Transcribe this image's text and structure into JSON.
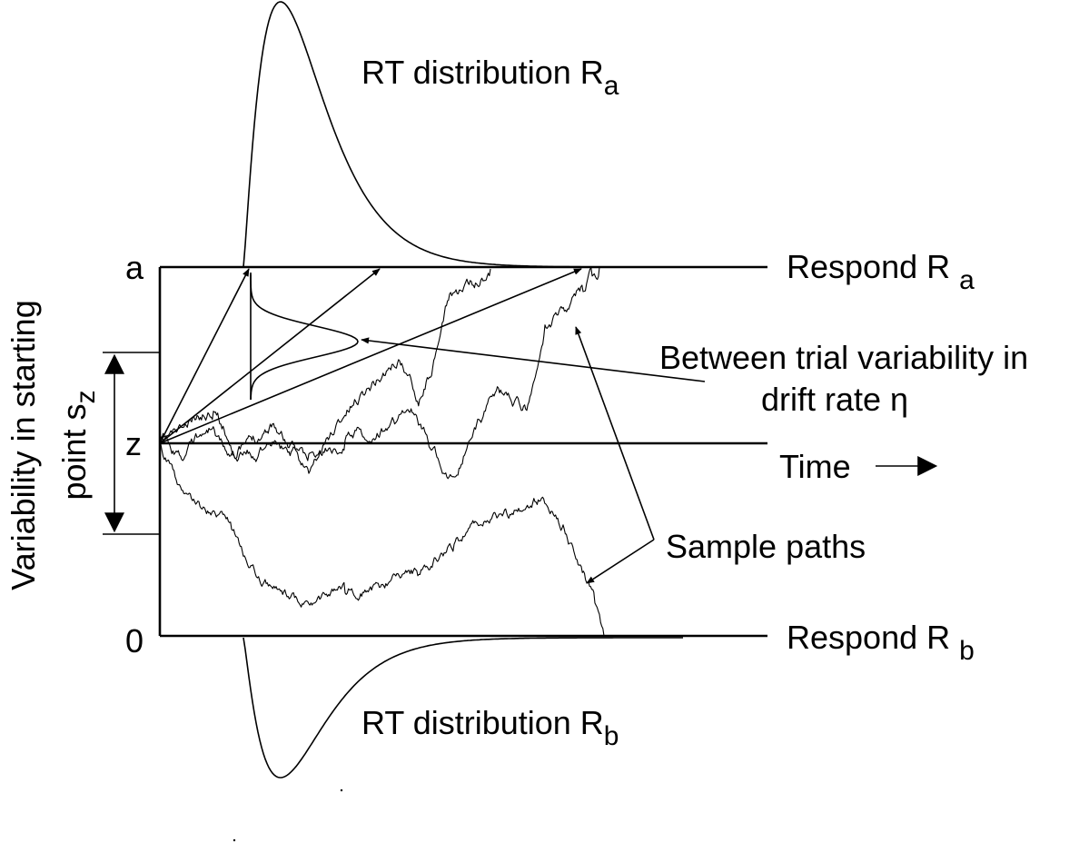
{
  "labels": {
    "rt_dist_a": "RT distribution R",
    "rt_dist_a_sub": "a",
    "rt_dist_b": "RT distribution R",
    "rt_dist_b_sub": "b",
    "respond_a": "Respond R",
    "respond_a_sub": "a",
    "respond_b": "Respond R",
    "respond_b_sub": "b",
    "boundary_a": "a",
    "start_z": "z",
    "boundary_0": "0",
    "time": "Time",
    "between_trial_line1": "Between trial variability in",
    "between_trial_line2": "drift rate η",
    "sample_paths": "Sample paths",
    "variability_line1": "Variability in starting",
    "variability_line2": "point s",
    "variability_sub": "z"
  }
}
